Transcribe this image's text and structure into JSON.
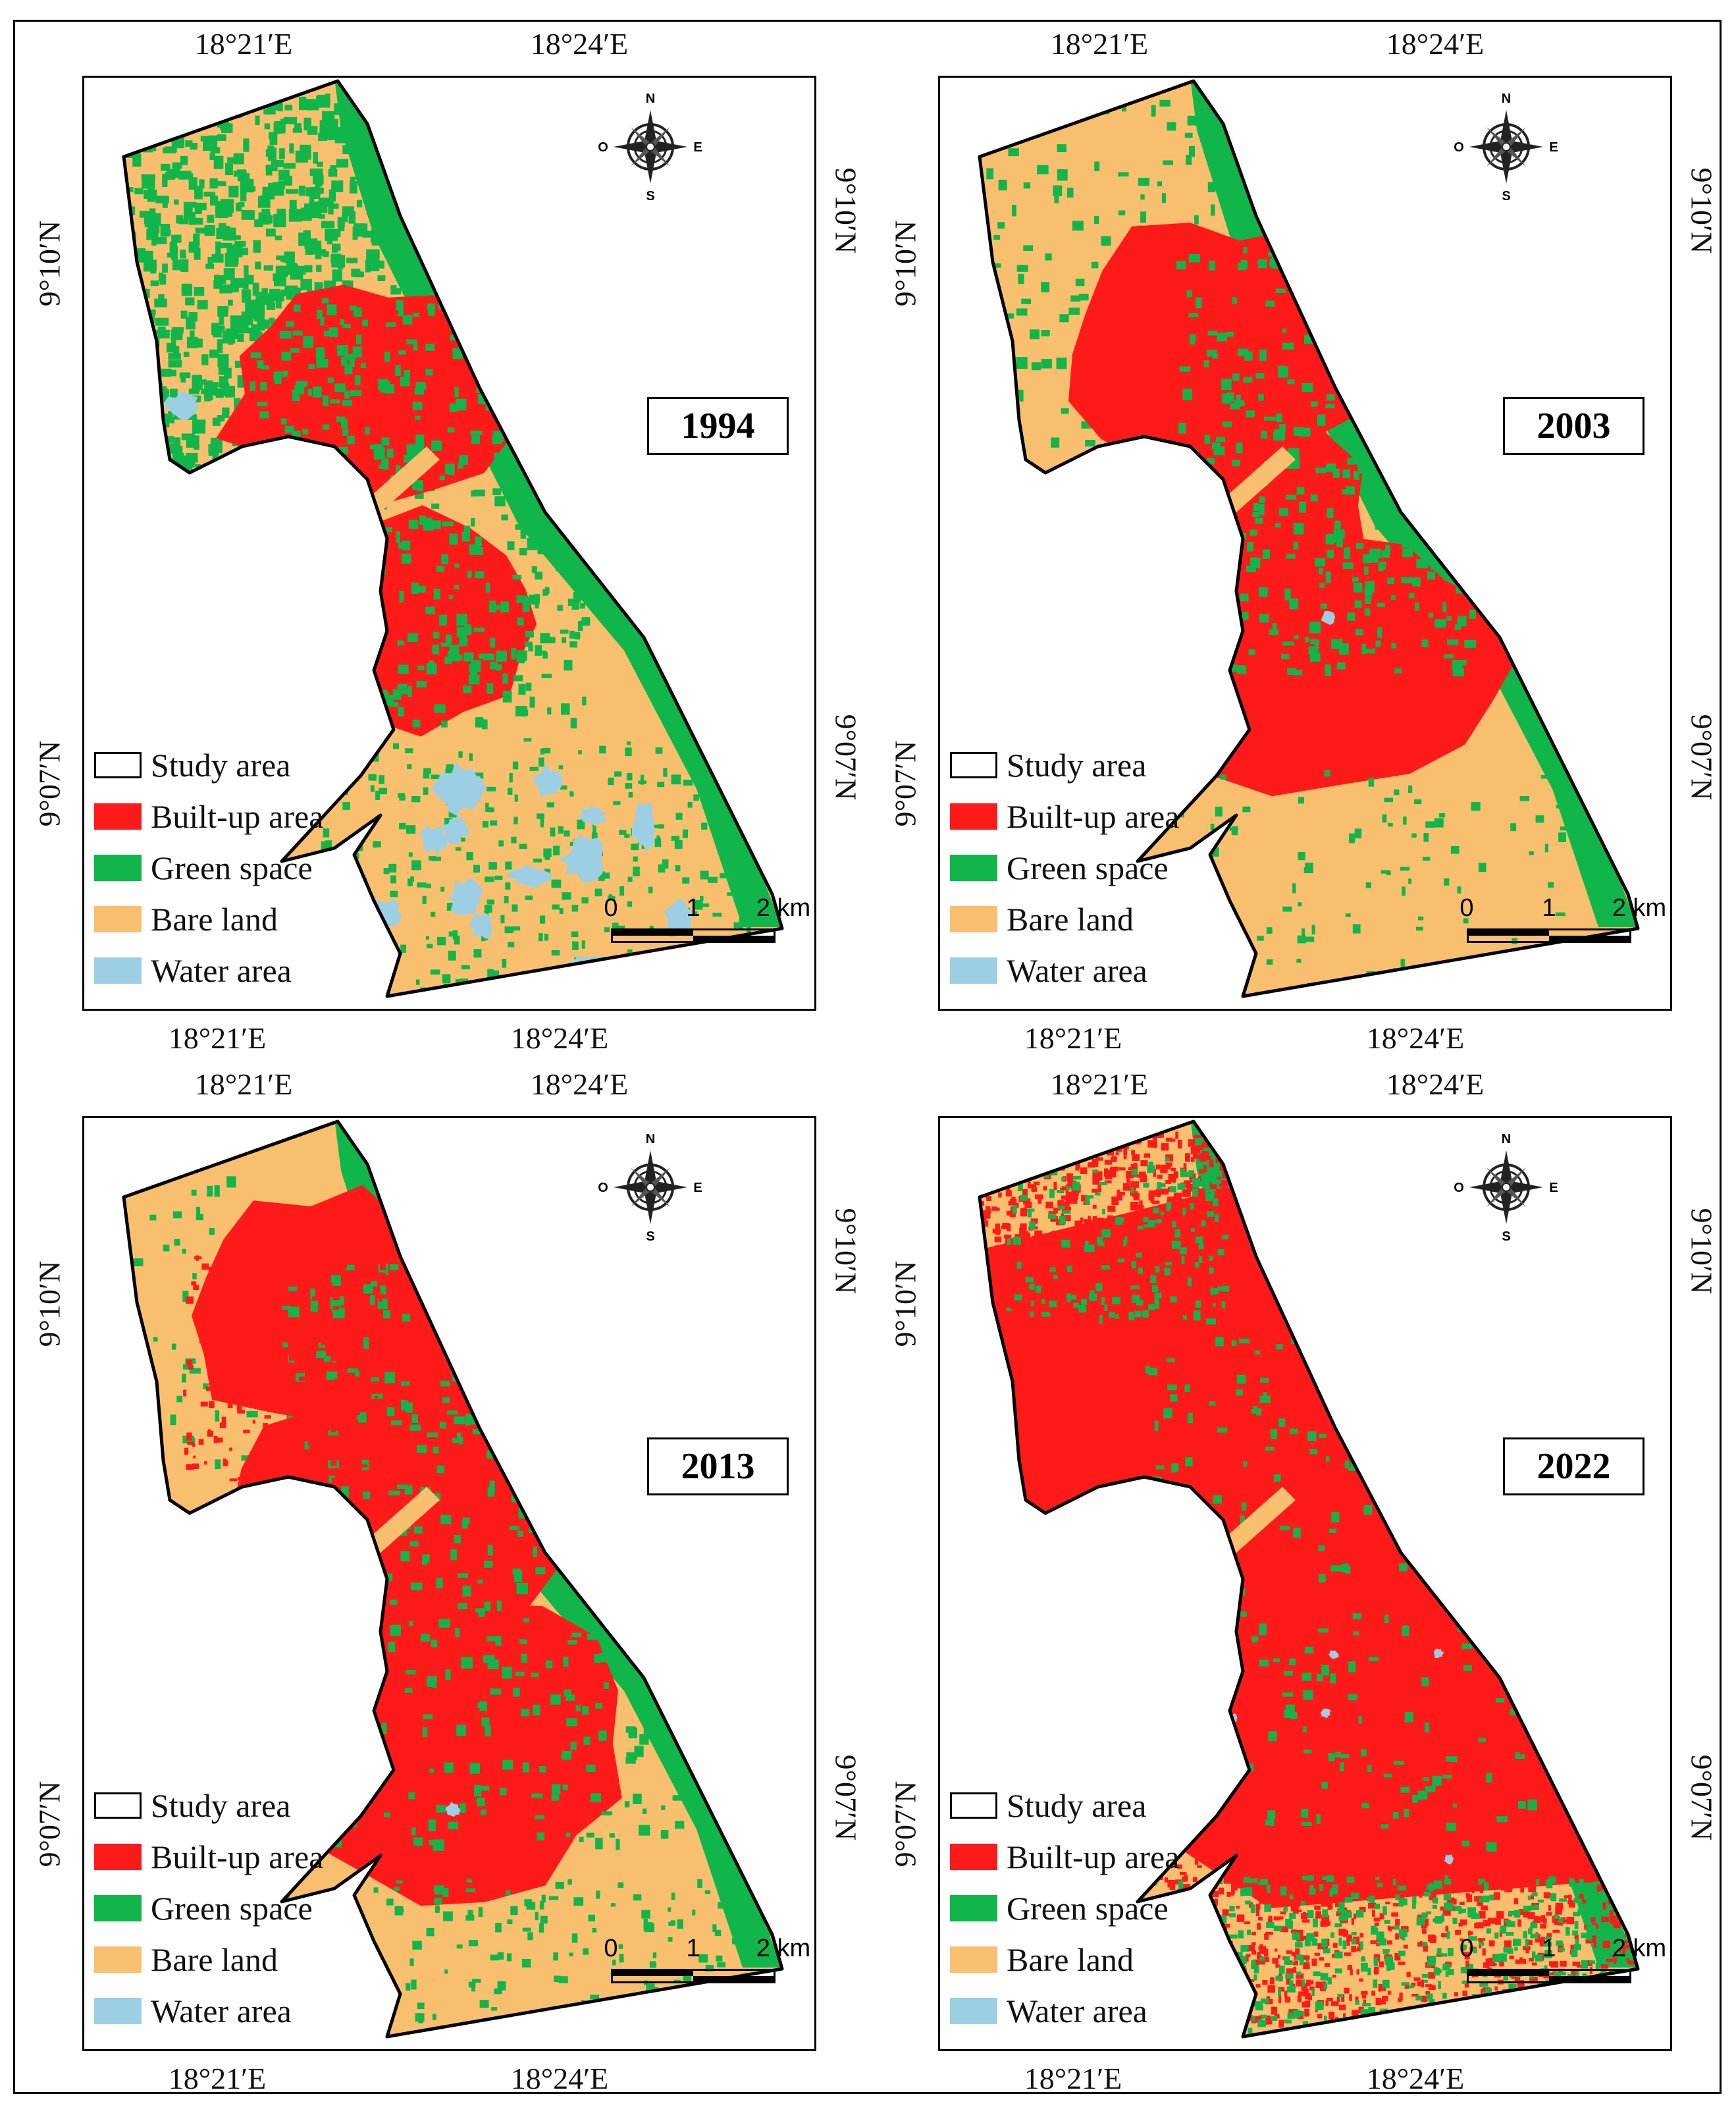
{
  "figure": {
    "panels": [
      {
        "year": "1994",
        "pattern": "p1994"
      },
      {
        "year": "2003",
        "pattern": "p2003"
      },
      {
        "year": "2013",
        "pattern": "p2013"
      },
      {
        "year": "2022",
        "pattern": "p2022"
      }
    ],
    "coords": {
      "lon_left": "18°21′E",
      "lon_right": "18°24′E",
      "lat_top": "9°10′N",
      "lat_bottom": "9°07′N"
    },
    "legend": [
      {
        "label": "Study area",
        "color": "#ffffff"
      },
      {
        "label": "Built-up area",
        "color": "#ff1a1a"
      },
      {
        "label": "Green space",
        "color": "#10b64a"
      },
      {
        "label": "Bare land",
        "color": "#f8c06e"
      },
      {
        "label": "Water area",
        "color": "#9ccfe3"
      }
    ],
    "compass": {
      "n": "N",
      "s": "S",
      "e": "E",
      "w": "O"
    },
    "scale": {
      "labels": [
        "0",
        "1",
        "2 km"
      ]
    },
    "colors": {
      "built": "#ff1a1a",
      "green": "#10b64a",
      "bare": "#f8c06e",
      "water": "#9ccfe3"
    }
  }
}
